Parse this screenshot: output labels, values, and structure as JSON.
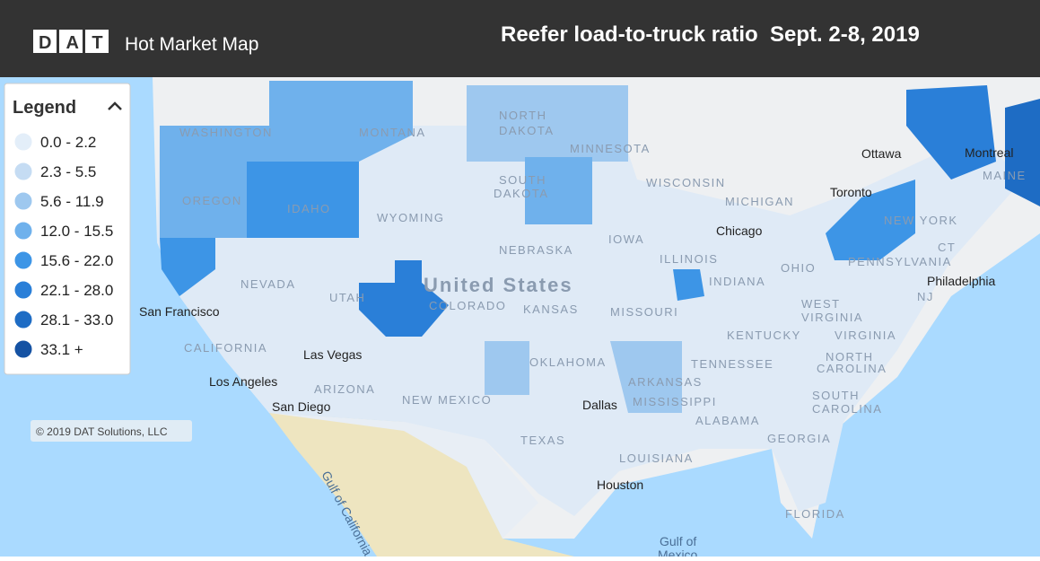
{
  "header": {
    "logo": "DAT",
    "app_name": "Hot Market Map",
    "title": "Reefer load-to-truck ratio  Sept. 2-8, 2019"
  },
  "legend": {
    "title": "Legend",
    "items": [
      {
        "label": "0.0 - 2.2",
        "color": "#e3eef9"
      },
      {
        "label": "2.3 - 5.5",
        "color": "#c5dcf3"
      },
      {
        "label": "5.6 - 11.9",
        "color": "#9ec8ef"
      },
      {
        "label": "12.0 - 15.5",
        "color": "#6fb1ec"
      },
      {
        "label": "15.6 - 22.0",
        "color": "#3d95e6"
      },
      {
        "label": "22.1 - 28.0",
        "color": "#2a7fd8"
      },
      {
        "label": "28.1 - 33.0",
        "color": "#1e6cc4"
      },
      {
        "label": "33.1 +",
        "color": "#1552a3"
      }
    ]
  },
  "copyright": "© 2019 DAT Solutions, LLC",
  "map": {
    "labels": [
      "WASHINGTON",
      "MONTANA",
      "NORTH",
      "DAKOTA",
      "MINNESOTA",
      "OREGON",
      "IDAHO",
      "SOUTH",
      "DAKOTA",
      "WISCONSIN",
      "MICHIGAN",
      "WYOMING",
      "NEBRASKA",
      "IOWA",
      "NEVADA",
      "UTAH",
      "COLORADO",
      "KANSAS",
      "MISSOURI",
      "ILLINOIS",
      "INDIANA",
      "OHIO",
      "PENNSYLVANIA",
      "NEW YORK",
      "CALIFORNIA",
      "ARIZONA",
      "NEW MEXICO",
      "OKLAHOMA",
      "ARKANSAS",
      "TENNESSEE",
      "KENTUCKY",
      "WEST",
      "VIRGINIA",
      "VIRGINIA",
      "NORTH",
      "CAROLINA",
      "SOUTH",
      "CAROLINA",
      "GEORGIA",
      "ALABAMA",
      "MISSISSIPPI",
      "LOUISIANA",
      "TEXAS",
      "FLORIDA",
      "MAINE",
      "NJ",
      "CT",
      "United States"
    ],
    "cities": [
      "San Francisco",
      "Las Vegas",
      "Los Angeles",
      "San Diego",
      "Dallas",
      "Houston",
      "Chicago",
      "Toronto",
      "Ottawa",
      "Montreal",
      "Philadelphia",
      "Gulf of California",
      "Gulf of",
      "Mexico"
    ]
  }
}
